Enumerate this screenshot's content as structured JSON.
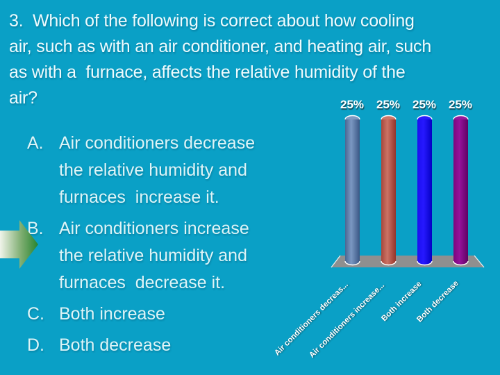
{
  "slide": {
    "background_color": "#0aa0c6",
    "question": "3.  Which of the following is correct about how cooling\nair, such as with an air conditioner, and heating air, such\nas with a  furnace, affects the relative humidity of the\nair?",
    "choices": [
      {
        "letter": "A.",
        "text": "Air conditioners decrease\nthe relative humidity and\nfurnaces  increase it."
      },
      {
        "letter": "B.",
        "text": "Air conditioners increase\nthe relative humidity and\nfurnaces  decrease it."
      },
      {
        "letter": "C.",
        "text": "Both increase"
      },
      {
        "letter": "D.",
        "text": "Both decrease"
      }
    ],
    "arrow_indicator": {
      "points_to_choice": "B",
      "gradient_start": "#f0f4ea",
      "gradient_mid": "#7fae72",
      "gradient_end": "#27842e"
    }
  },
  "chart_data": {
    "type": "bar",
    "title": "",
    "xlabel": "",
    "ylabel": "",
    "categories": [
      "Air conditioners decreas...",
      "Air conditioners increase...",
      "Both increase",
      "Both decrease"
    ],
    "values": [
      25,
      25,
      25,
      25
    ],
    "ylim": [
      0,
      25
    ],
    "grid": false,
    "legend": false,
    "floor_color": "#8f8f8f",
    "bars": [
      {
        "label": "Air conditioners decreas...",
        "value": 25,
        "value_label": "25%",
        "c1": "#4a6793",
        "c2": "#7b98c2",
        "c3": "#3a5784",
        "cap": "#7e9ac2"
      },
      {
        "label": "Air conditioners increase...",
        "value": 25,
        "value_label": "25%",
        "c1": "#a8473c",
        "c2": "#cc7365",
        "c3": "#943429",
        "cap": "#cd7668"
      },
      {
        "label": "Both increase",
        "value": 25,
        "value_label": "25%",
        "c1": "#1a10f0",
        "c2": "#2618ff",
        "c3": "#0500c4",
        "cap": "#2a1cfd"
      },
      {
        "label": "Both decrease",
        "value": 25,
        "value_label": "25%",
        "c1": "#7a067e",
        "c2": "#95129a",
        "c3": "#5f0263",
        "cap": "#97189a"
      }
    ]
  }
}
